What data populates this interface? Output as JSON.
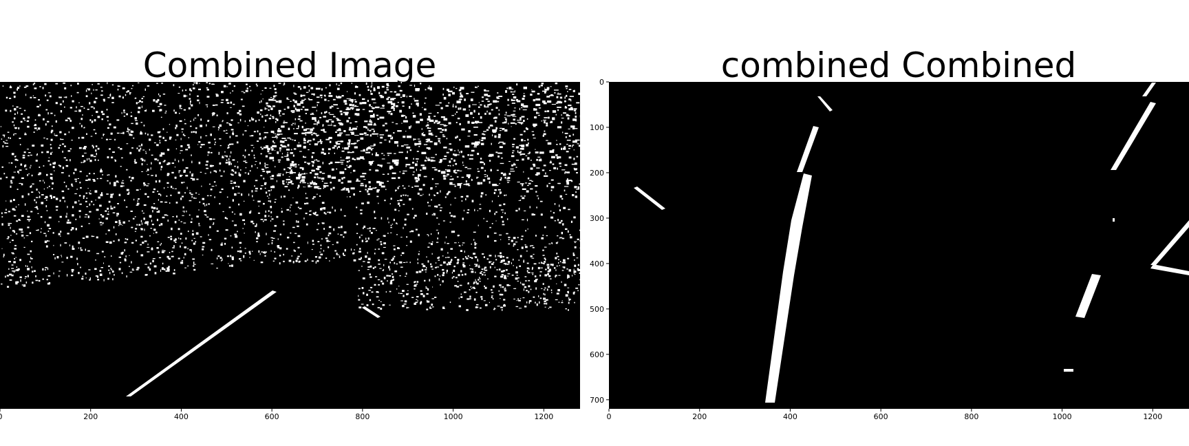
{
  "chart_data": [
    {
      "type": "image",
      "title": "Combined Image",
      "xlabel": "",
      "ylabel": "",
      "xlim": [
        0,
        1280
      ],
      "ylim": [
        720,
        0
      ],
      "x_ticks": [
        "0",
        "200",
        "400",
        "600",
        "800",
        "1000",
        "1200"
      ],
      "y_ticks": [],
      "colormap": "binary (black background, white edge pixels)",
      "content": "thresholded binary edge image of a road scene with a diagonal lane line"
    },
    {
      "type": "image",
      "title": "combined Combined",
      "xlabel": "",
      "ylabel": "",
      "xlim": [
        0,
        1280
      ],
      "ylim": [
        720,
        0
      ],
      "x_ticks": [
        "0",
        "200",
        "400",
        "600",
        "800",
        "1000",
        "1200"
      ],
      "y_ticks": [
        "0",
        "100",
        "200",
        "300",
        "400",
        "500",
        "600",
        "700"
      ],
      "colormap": "binary (black background, white lane pixels)",
      "content": "bird's-eye warped binary image showing near-vertical lane lines"
    }
  ],
  "colors": {
    "background": "#000000",
    "foreground": "#ffffff",
    "page": "#ffffff"
  }
}
